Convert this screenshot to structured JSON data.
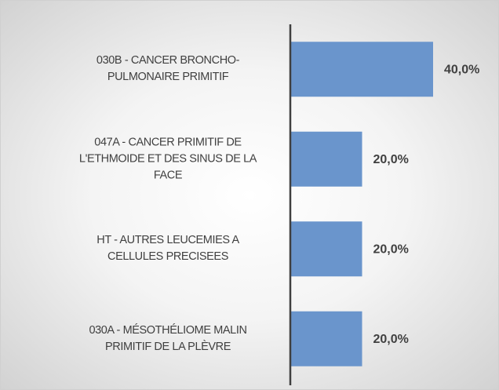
{
  "chart_data": {
    "type": "bar",
    "orientation": "horizontal",
    "categories": [
      "030B - CANCER BRONCHO-\nPULMONAIRE PRIMITIF",
      "047A - CANCER PRIMITIF DE\nL'ETHMOIDE ET DES SINUS DE LA\nFACE",
      "HT - AUTRES LEUCEMIES A\nCELLULES PRECISEES",
      "030A - MÉSOTHÉLIOME MALIN\nPRIMITIF DE LA PLÈVRE"
    ],
    "values": [
      40,
      20,
      20,
      20
    ],
    "value_labels": [
      "40,0%",
      "20,0%",
      "20,0%",
      "20,0%"
    ],
    "color": "#6a95cc"
  }
}
